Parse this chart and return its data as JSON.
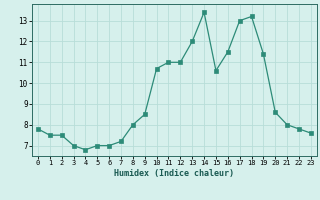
{
  "x": [
    0,
    1,
    2,
    3,
    4,
    5,
    6,
    7,
    8,
    9,
    10,
    11,
    12,
    13,
    14,
    15,
    16,
    17,
    18,
    19,
    20,
    21,
    22,
    23
  ],
  "y": [
    7.8,
    7.5,
    7.5,
    7.0,
    6.8,
    7.0,
    7.0,
    7.2,
    8.0,
    8.5,
    10.7,
    11.0,
    11.0,
    12.0,
    13.4,
    10.6,
    11.5,
    13.0,
    13.2,
    11.4,
    8.6,
    8.0,
    7.8,
    7.6
  ],
  "line_color": "#2d8b78",
  "marker_color": "#2d8b78",
  "bg_color": "#d6f0ec",
  "grid_color": "#b8ddd8",
  "xlabel": "Humidex (Indice chaleur)",
  "xlim": [
    -0.5,
    23.5
  ],
  "ylim": [
    6.5,
    13.8
  ],
  "yticks": [
    7,
    8,
    9,
    10,
    11,
    12,
    13
  ],
  "xticks": [
    0,
    1,
    2,
    3,
    4,
    5,
    6,
    7,
    8,
    9,
    10,
    11,
    12,
    13,
    14,
    15,
    16,
    17,
    18,
    19,
    20,
    21,
    22,
    23
  ]
}
